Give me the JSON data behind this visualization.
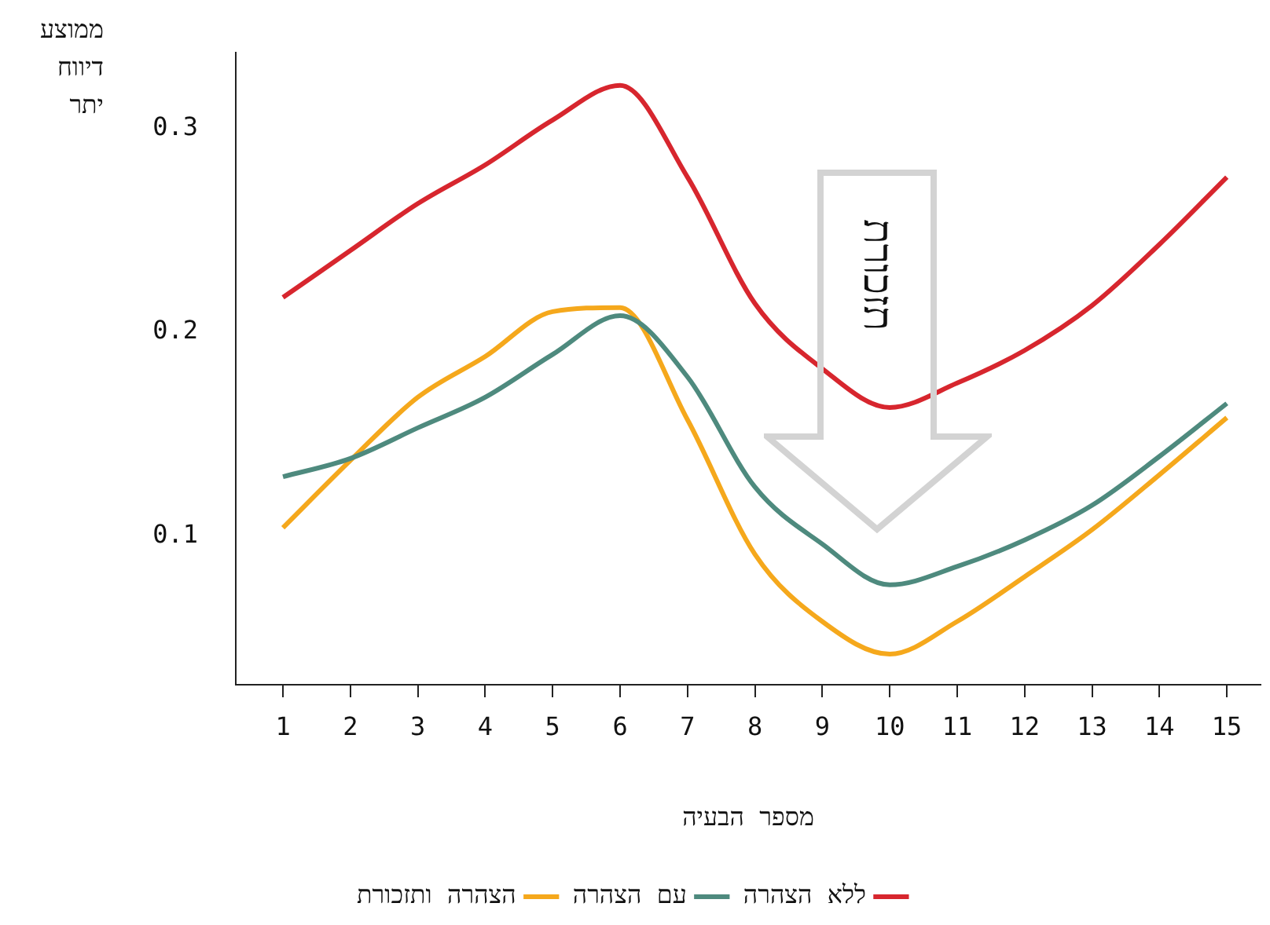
{
  "chart_data": {
    "type": "line",
    "xlabel": "מספר הבעיה",
    "ylabel": "ממוצע דיווח יתר",
    "x": [
      1,
      2,
      3,
      4,
      5,
      6,
      7,
      8,
      9,
      10,
      11,
      12,
      13,
      14,
      15
    ],
    "xlim": [
      0.3,
      15.5
    ],
    "xticks": [
      1,
      2,
      3,
      4,
      5,
      6,
      7,
      8,
      9,
      10,
      11,
      12,
      13,
      14,
      15
    ],
    "ylim": [
      0.027,
      0.337
    ],
    "yticks": [
      0.1,
      0.2,
      0.3
    ],
    "grid": false,
    "legend": "bottom",
    "marker": "none",
    "line_style": "solid",
    "annotations": [
      "תזכורת"
    ],
    "series": [
      {
        "name": "ללא הצהרה",
        "color": "#d7262e",
        "values": [
          0.217,
          0.24,
          0.263,
          0.282,
          0.304,
          0.321,
          0.276,
          0.214,
          0.182,
          0.163,
          0.175,
          0.191,
          0.213,
          0.243,
          0.276
        ]
      },
      {
        "name": "עם הצהרה",
        "color": "#4e8a7e",
        "values": [
          0.129,
          0.138,
          0.153,
          0.168,
          0.189,
          0.208,
          0.178,
          0.124,
          0.096,
          0.076,
          0.085,
          0.098,
          0.115,
          0.139,
          0.165
        ]
      },
      {
        "name": "הצהרה ותזכורת",
        "color": "#f5a81c",
        "values": [
          0.104,
          0.137,
          0.168,
          0.188,
          0.21,
          0.212,
          0.157,
          0.091,
          0.058,
          0.042,
          0.058,
          0.08,
          0.103,
          0.13,
          0.158
        ]
      }
    ]
  }
}
